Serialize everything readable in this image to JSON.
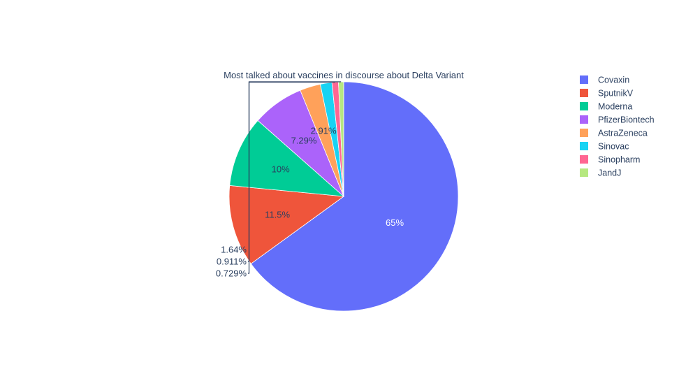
{
  "chart_data": {
    "type": "pie",
    "title": "Most talked about vaccines in discourse about Delta Variant",
    "categories": [
      "Covaxin",
      "SputnikV",
      "Moderna",
      "PfizerBiontech",
      "AstraZeneca",
      "Sinovac",
      "Sinopharm",
      "JandJ"
    ],
    "values": [
      65.0,
      11.5,
      10.0,
      7.29,
      2.91,
      1.64,
      0.911,
      0.729
    ],
    "labels": [
      "65%",
      "11.5%",
      "10%",
      "7.29%",
      "2.91%",
      "1.64%",
      "0.911%",
      "0.729%"
    ],
    "colors": [
      "#636efa",
      "#EF553B",
      "#00cc96",
      "#ab63fa",
      "#FFA15A",
      "#19d3f3",
      "#FF6692",
      "#B6E880"
    ],
    "direction": "clockwise",
    "start": "top",
    "legend_position": "right"
  }
}
